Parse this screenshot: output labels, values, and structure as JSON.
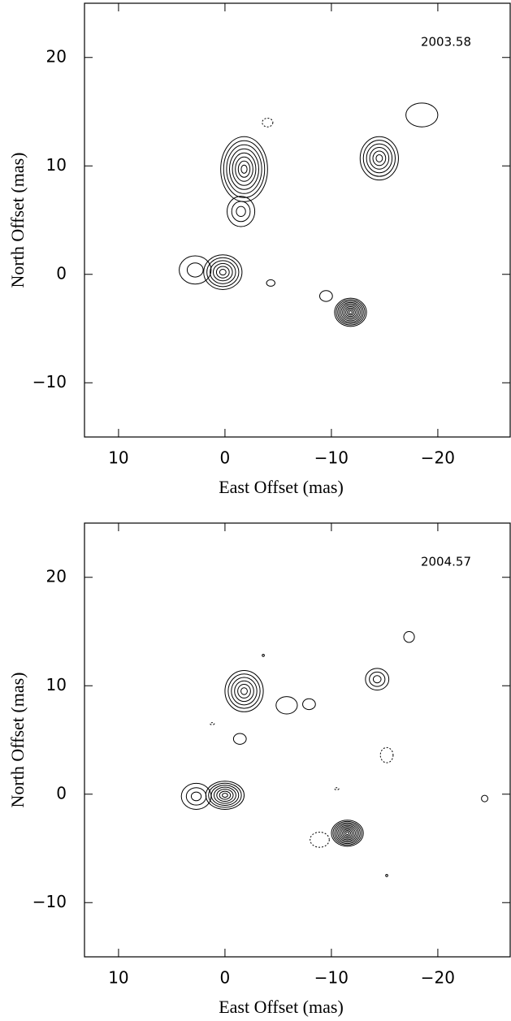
{
  "chart_data": [
    {
      "type": "contour",
      "annotation": "2003.58",
      "x_label": "East Offset (mas)",
      "y_label": "North Offset (mas)",
      "xlim": [
        13.2,
        -26.8
      ],
      "ylim": [
        -15,
        25
      ],
      "xticks": [
        10,
        0,
        {
          "value": -10,
          "label": "−10"
        },
        {
          "value": -20,
          "label": "−20"
        }
      ],
      "yticks": [
        {
          "value": -10,
          "label": "−10"
        },
        0,
        10,
        20
      ],
      "components": [
        {
          "x": -1.8,
          "y": 9.7,
          "rx": 2.2,
          "ry": 3.0,
          "levels": 8,
          "dashed": false
        },
        {
          "x": -1.5,
          "y": 5.8,
          "rx": 1.3,
          "ry": 1.4,
          "levels": 3,
          "dashed": false
        },
        {
          "x": 0.2,
          "y": 0.2,
          "rx": 1.8,
          "ry": 1.6,
          "levels": 6,
          "dashed": false
        },
        {
          "x": 2.8,
          "y": 0.4,
          "rx": 1.5,
          "ry": 1.3,
          "levels": 2,
          "dashed": false
        },
        {
          "x": -4.3,
          "y": -0.8,
          "rx": 0.4,
          "ry": 0.3,
          "levels": 1,
          "dashed": false
        },
        {
          "x": -9.5,
          "y": -2.0,
          "rx": 0.6,
          "ry": 0.5,
          "levels": 1,
          "dashed": false
        },
        {
          "x": -11.8,
          "y": -3.5,
          "rx": 1.5,
          "ry": 1.3,
          "levels": 10,
          "dashed": false
        },
        {
          "x": -14.5,
          "y": 10.7,
          "rx": 1.8,
          "ry": 2.0,
          "levels": 6,
          "dashed": false
        },
        {
          "x": -18.5,
          "y": 14.7,
          "rx": 1.5,
          "ry": 1.1,
          "levels": 1,
          "dashed": false
        },
        {
          "x": -4.0,
          "y": 14.0,
          "rx": 0.5,
          "ry": 0.4,
          "levels": 1,
          "dashed": true
        }
      ]
    },
    {
      "type": "contour",
      "annotation": "2004.57",
      "x_label": "East Offset (mas)",
      "y_label": "North Offset (mas)",
      "xlim": [
        13.2,
        -26.8
      ],
      "ylim": [
        -15,
        25
      ],
      "xticks": [
        10,
        0,
        {
          "value": -10,
          "label": "−10"
        },
        {
          "value": -20,
          "label": "−20"
        }
      ],
      "yticks": [
        {
          "value": -10,
          "label": "−10"
        },
        0,
        10,
        20
      ],
      "components": [
        {
          "x": -1.8,
          "y": 9.5,
          "rx": 1.8,
          "ry": 1.9,
          "levels": 6,
          "dashed": false
        },
        {
          "x": -1.4,
          "y": 5.1,
          "rx": 0.6,
          "ry": 0.5,
          "levels": 1,
          "dashed": false
        },
        {
          "x": 0.0,
          "y": -0.1,
          "rx": 1.8,
          "ry": 1.3,
          "levels": 7,
          "dashed": false
        },
        {
          "x": 2.7,
          "y": -0.2,
          "rx": 1.4,
          "ry": 1.2,
          "levels": 3,
          "dashed": false
        },
        {
          "x": -5.8,
          "y": 8.2,
          "rx": 1.0,
          "ry": 0.8,
          "levels": 1,
          "dashed": false
        },
        {
          "x": -7.9,
          "y": 8.3,
          "rx": 0.6,
          "ry": 0.5,
          "levels": 1,
          "dashed": false
        },
        {
          "x": -11.5,
          "y": -3.6,
          "rx": 1.5,
          "ry": 1.2,
          "levels": 10,
          "dashed": false
        },
        {
          "x": -14.3,
          "y": 10.6,
          "rx": 1.1,
          "ry": 1.0,
          "levels": 3,
          "dashed": false
        },
        {
          "x": -17.3,
          "y": 14.5,
          "rx": 0.5,
          "ry": 0.5,
          "levels": 1,
          "dashed": false
        },
        {
          "x": -24.4,
          "y": -0.4,
          "rx": 0.3,
          "ry": 0.3,
          "levels": 1,
          "dashed": false
        },
        {
          "x": -3.6,
          "y": 12.8,
          "rx": 0.1,
          "ry": 0.1,
          "levels": 1,
          "dashed": false
        },
        {
          "x": -15.2,
          "y": -7.5,
          "rx": 0.1,
          "ry": 0.1,
          "levels": 1,
          "dashed": false
        },
        {
          "x": -15.2,
          "y": 3.6,
          "rx": 0.6,
          "ry": 0.7,
          "levels": 1,
          "dashed": true
        },
        {
          "x": -8.9,
          "y": -4.2,
          "rx": 0.9,
          "ry": 0.7,
          "levels": 1,
          "dashed": true
        },
        {
          "x": 1.2,
          "y": 6.5,
          "rx": 0.2,
          "ry": 0.1,
          "levels": 1,
          "dashed": true
        },
        {
          "x": -10.5,
          "y": 0.5,
          "rx": 0.2,
          "ry": 0.1,
          "levels": 1,
          "dashed": true
        }
      ]
    }
  ]
}
